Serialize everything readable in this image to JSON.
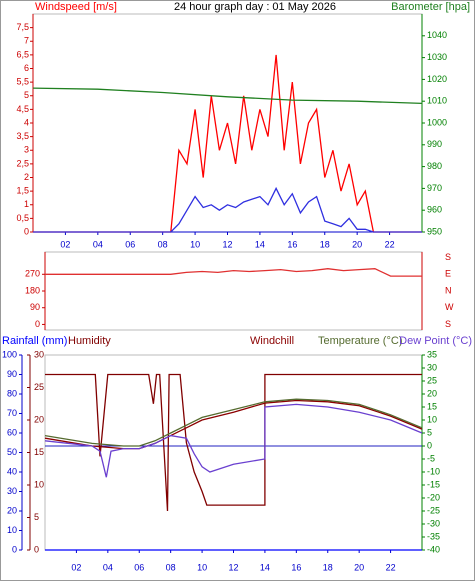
{
  "chart_data": [
    {
      "type": "line",
      "title": "24 hour graph day : 01 May 2026",
      "x": [
        0,
        0.5,
        1,
        1.5,
        2,
        2.5,
        3,
        3.5,
        4,
        4.5,
        5,
        5.5,
        6,
        6.5,
        7,
        7.5,
        8,
        8.5,
        9,
        9.5,
        10,
        10.5,
        11,
        11.5,
        12,
        12.5,
        13,
        13.5,
        14,
        14.5,
        15,
        15.5,
        16,
        16.5,
        17,
        17.5,
        18,
        18.5,
        19,
        19.5,
        20,
        20.5,
        21,
        21.5,
        22,
        22.5,
        23,
        23.5,
        24
      ],
      "xlim": [
        0,
        24
      ],
      "xticks": [
        {
          "value": 2,
          "label": "02"
        },
        {
          "value": 4,
          "label": "04"
        },
        {
          "value": 6,
          "label": "06"
        },
        {
          "value": 8,
          "label": "08"
        },
        10,
        12,
        14,
        16,
        18,
        20,
        22
      ],
      "ylim": [
        0,
        8
      ],
      "yticks": [
        0,
        {
          "value": 0.5,
          "label": "0,5"
        },
        1,
        {
          "value": 1.5,
          "label": "1,5"
        },
        2,
        {
          "value": 2.5,
          "label": "2,5"
        },
        3,
        {
          "value": 3.5,
          "label": "3,5"
        },
        4,
        {
          "value": 4.5,
          "label": "4,5"
        },
        5,
        {
          "value": 5.5,
          "label": "5,5"
        },
        6,
        {
          "value": 6.5,
          "label": "6,5"
        },
        7,
        {
          "value": 7.5,
          "label": "7,5"
        }
      ],
      "y_color": "#cc0000",
      "y2lim": [
        950,
        1050
      ],
      "y2ticks": [
        950,
        960,
        970,
        980,
        990,
        1000,
        1010,
        1020,
        1030,
        1040
      ],
      "y2_color": "#008000",
      "series": [
        {
          "name": "Windspeed [m/s]",
          "color": "#ff0000",
          "values": [
            0,
            0,
            0,
            0,
            0,
            0,
            0,
            0,
            0,
            0,
            0,
            0,
            0,
            0,
            0,
            0,
            0,
            0,
            3,
            2.5,
            4.5,
            2,
            5,
            3,
            4,
            2.5,
            5,
            3,
            4.5,
            3.5,
            6.5,
            3,
            5.5,
            2.5,
            4,
            4.5,
            2,
            3,
            1.5,
            2.5,
            1,
            1.5,
            0,
            0,
            0,
            0,
            0,
            0,
            0
          ]
        },
        {
          "color": "#3030e0",
          "values": [
            0,
            0,
            0,
            0,
            0,
            0,
            0,
            0,
            0,
            0,
            0,
            0,
            0,
            0,
            0,
            0,
            0,
            0,
            0.3,
            0.8,
            1.3,
            0.9,
            1,
            0.8,
            1,
            0.9,
            1.1,
            1.2,
            1.3,
            1,
            1.6,
            1,
            1.4,
            0.7,
            1.1,
            1.3,
            0.4,
            0.3,
            0.2,
            0.5,
            0.1,
            0.1,
            0,
            0,
            0,
            0,
            0,
            0,
            0
          ]
        },
        {
          "name": "Barometer [hpa]",
          "color": "#208020",
          "axis": "y2",
          "x": [
            0,
            4,
            8,
            12,
            16,
            20,
            24
          ],
          "values": [
            1016,
            1015.5,
            1014,
            1012,
            1010.5,
            1010,
            1009
          ]
        }
      ]
    },
    {
      "type": "line",
      "x": [
        0,
        1,
        2,
        3,
        4,
        5,
        6,
        7,
        8,
        9,
        10,
        11,
        12,
        13,
        14,
        15,
        16,
        17,
        18,
        19,
        20,
        21,
        22,
        23,
        24
      ],
      "xlim": [
        0,
        24
      ],
      "values": [
        270,
        270,
        270,
        270,
        270,
        270,
        270,
        270,
        270,
        280,
        285,
        280,
        290,
        285,
        290,
        295,
        285,
        290,
        300,
        290,
        295,
        300,
        260,
        260,
        260
      ],
      "color": "#e03030",
      "ylim": [
        -30,
        390
      ],
      "yticks": [
        0,
        90,
        180,
        270
      ],
      "y_color": "#cc0000",
      "y2lim": [
        -30,
        390
      ],
      "y2ticks": [
        {
          "value": 0,
          "label": "S"
        },
        {
          "value": 90,
          "label": "W"
        },
        {
          "value": 180,
          "label": "N"
        },
        {
          "value": 270,
          "label": "E"
        },
        {
          "value": 360,
          "label": "S"
        }
      ],
      "y2_color": "#cc0000"
    },
    {
      "type": "line",
      "xlim": [
        0,
        24
      ],
      "xticks": [
        {
          "value": 2,
          "label": "02"
        },
        {
          "value": 4,
          "label": "04"
        },
        {
          "value": 6,
          "label": "06"
        },
        {
          "value": 8,
          "label": "08"
        },
        10,
        12,
        14,
        16,
        18,
        20,
        22
      ],
      "ylim": [
        0,
        100
      ],
      "yticks": [
        0,
        10,
        20,
        30,
        40,
        50,
        60,
        70,
        80,
        90,
        100
      ],
      "y_color": "#0000cc",
      "y3lim": [
        0,
        30
      ],
      "y3ticks": [
        0,
        5,
        10,
        15,
        20,
        25,
        30
      ],
      "y3_color": "#800000",
      "y2lim": [
        -40,
        35
      ],
      "y2ticks": [
        -40,
        -35,
        -30,
        -25,
        -20,
        -15,
        -10,
        -5,
        0,
        5,
        10,
        15,
        20,
        25,
        30,
        35
      ],
      "y2_color": "#008000",
      "zero_line_color": "#2020c0",
      "series": [
        {
          "name": "Rainfall (mm)",
          "color": "#0000ff",
          "axis": "y3",
          "x": [
            0,
            24
          ],
          "values": [
            0,
            0
          ]
        },
        {
          "name": "Humidity",
          "color": "#800000",
          "x": [
            0,
            3.2,
            3.5,
            4,
            6.6,
            6.9,
            7.1,
            7.3,
            7.8,
            7.9,
            8.6,
            9,
            9.5,
            10,
            10.3,
            14,
            14,
            24
          ],
          "values": [
            90,
            90,
            48,
            90,
            90,
            75,
            90,
            90,
            20,
            90,
            90,
            55,
            40,
            30,
            23,
            23,
            90,
            90
          ]
        },
        {
          "name": "Windchill",
          "color": "#8b0000",
          "axis": "y2",
          "x": [
            0,
            3,
            5,
            6,
            7,
            8,
            9,
            10,
            12,
            14,
            16,
            18,
            20,
            22,
            24
          ],
          "values": [
            3,
            0,
            -1,
            -1,
            1,
            4,
            7,
            10,
            13,
            16.5,
            17.5,
            17,
            15.5,
            11.5,
            6.5
          ]
        },
        {
          "name": "Temperature (°C)",
          "color": "#556b2f",
          "axis": "y2",
          "x": [
            0,
            3,
            5,
            6,
            7,
            8,
            9,
            10,
            12,
            14,
            16,
            18,
            20,
            22,
            24
          ],
          "values": [
            4,
            1,
            0,
            0,
            2,
            5,
            8,
            11,
            14,
            17,
            18,
            17.5,
            16,
            12,
            7
          ]
        },
        {
          "name": "Dew Point (°C)",
          "color": "#6a40d0",
          "axis": "y2",
          "x": [
            0,
            3,
            3.5,
            3.9,
            4.2,
            5,
            6,
            7,
            8,
            9,
            9.5,
            10,
            10.5,
            12,
            14,
            14,
            16,
            18,
            20,
            22,
            24
          ],
          "values": [
            2,
            0,
            -2,
            -12,
            -2,
            -1,
            -1,
            1,
            4,
            3,
            -3,
            -8,
            -10,
            -7,
            -5,
            15,
            16,
            15,
            13,
            10,
            5
          ]
        }
      ]
    }
  ]
}
